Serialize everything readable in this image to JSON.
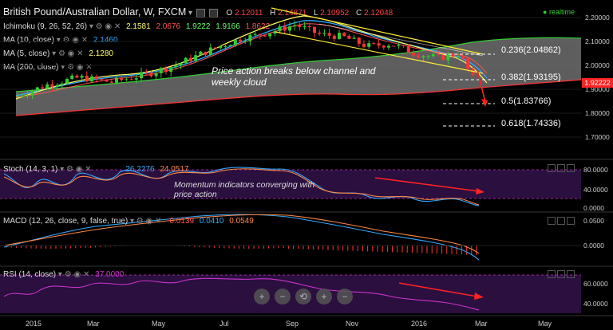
{
  "header": {
    "title": "British Pound/Australian Dollar, W, FXCM",
    "ohlc": [
      {
        "label": "O",
        "value": "2.12011"
      },
      {
        "label": "H",
        "value": "2.14871"
      },
      {
        "label": "L",
        "value": "2.10952"
      },
      {
        "label": "C",
        "value": "2.12048"
      }
    ],
    "realtime": "realtime"
  },
  "indicators": [
    {
      "label": "Ichimoku (9, 26, 52, 26)",
      "values": [
        "2.1581",
        "2.0676",
        "1.9222",
        "1.9166",
        "1.8622"
      ],
      "colors": [
        "#ffff66",
        "#ff5555",
        "#66ff66",
        "#66ff66",
        "#ff5555"
      ]
    },
    {
      "label": "MA (10, close)",
      "values": [
        "2.1460"
      ],
      "colors": [
        "#33aaff"
      ]
    },
    {
      "label": "MA (5, close)",
      "values": [
        "2.1280"
      ],
      "colors": [
        "#ffff66"
      ]
    },
    {
      "label": "MA (200, close)",
      "values": [],
      "colors": []
    }
  ],
  "annotations": {
    "main": "Price action breaks below channel and weekly cloud",
    "stoch": "Momentum indicators converging with price action"
  },
  "fib_levels": [
    {
      "label": "0.236(2.04862)",
      "value": 2.04862
    },
    {
      "label": "0.382(1.93195)",
      "value": 1.93195
    },
    {
      "label": "0.5(1.83766)",
      "value": 1.83766
    },
    {
      "label": "0.618(1.74336)",
      "value": 1.74336
    }
  ],
  "price_axis": {
    "ticks": [
      "2.20000",
      "2.10000",
      "2.00000",
      "1.90000",
      "1.80000",
      "1.70000"
    ],
    "current": "1.92222"
  },
  "time_axis": [
    "2015",
    "Mar",
    "May",
    "Jul",
    "Sep",
    "Nov",
    "2016",
    "Mar",
    "May"
  ],
  "stoch": {
    "label": "Stoch (14, 3, 1)",
    "values": [
      "26.2276",
      "24.0517"
    ],
    "colors": [
      "#33aaff",
      "#ff8844"
    ],
    "ticks": [
      "80.0000",
      "40.0000",
      "0.0000"
    ]
  },
  "macd": {
    "label": "MACD (12, 26, close, 9, false, true)",
    "values": [
      "-0.0139",
      "0.0410",
      "0.0549"
    ],
    "colors": [
      "#ff5555",
      "#33aaff",
      "#ff8844"
    ],
    "ticks": [
      "0.0500",
      "0.0000"
    ]
  },
  "rsi": {
    "label": "RSI (14, close)",
    "values": [
      "37.0000"
    ],
    "colors": [
      "#cc33cc"
    ],
    "ticks": [
      "60.0000",
      "40.0000"
    ]
  },
  "zoom_controls": [
    "+",
    "−",
    "⟲",
    "+",
    "−"
  ],
  "colors": {
    "bull": "#33cc33",
    "bear": "#ff3333",
    "cloud": "#777777",
    "channel": "#ffee33",
    "arrow": "#ff2222",
    "stoch_bg": "#2a0f3f",
    "rsi_bg": "#2a0f3f"
  },
  "chart_data": {
    "type": "candlestick",
    "series": [
      {
        "name": "price (close)",
        "x": [
          "2015-01",
          "2015-02",
          "2015-03",
          "2015-04",
          "2015-05",
          "2015-06",
          "2015-07",
          "2015-08",
          "2015-09",
          "2015-10",
          "2015-11",
          "2015-12",
          "2016-01",
          "2016-02"
        ],
        "values": [
          1.88,
          1.96,
          1.94,
          1.95,
          2.0,
          2.05,
          2.13,
          2.15,
          2.12,
          2.1,
          2.07,
          2.03,
          2.04,
          1.92
        ]
      }
    ],
    "ylim": [
      1.65,
      2.22
    ]
  }
}
